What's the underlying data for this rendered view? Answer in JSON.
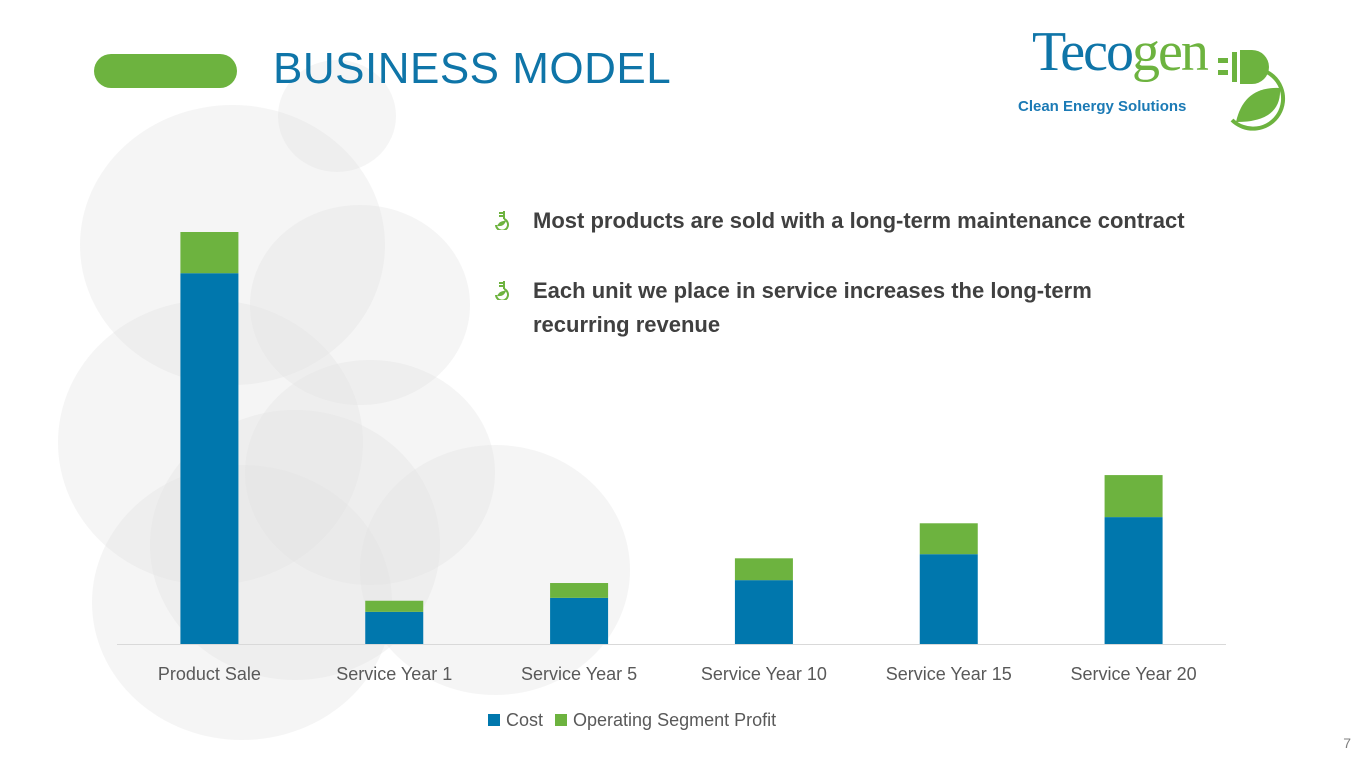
{
  "title": "BUSINESS MODEL",
  "logo": {
    "name_part1": "Teco",
    "name_part2": "gen",
    "tagline": "Clean Energy Solutions"
  },
  "bullets": [
    {
      "icon": "plug-leaf-icon",
      "text": "Most products are sold with a long-term maintenance contract"
    },
    {
      "icon": "plug-leaf-icon",
      "text": "Each unit we place in service increases the long-term recurring revenue"
    }
  ],
  "page_number": "7",
  "colors": {
    "cost": "#0077ad",
    "profit": "#6db33f",
    "title": "#0f75a8"
  },
  "chart_data": {
    "type": "bar",
    "stacked": true,
    "title": "",
    "xlabel": "",
    "ylabel": "",
    "ylim": [
      0,
      100
    ],
    "grid": false,
    "legend_placement": "bottom",
    "categories": [
      "Product Sale",
      "Service Year 1",
      "Service Year 5",
      "Service Year 10",
      "Service Year 15",
      "Service Year 20"
    ],
    "series": [
      {
        "name": "Cost",
        "values": [
          90,
          7.8,
          11.2,
          15.5,
          21.8,
          30.8
        ]
      },
      {
        "name": "Operating Segment Profit",
        "values": [
          10,
          2.7,
          3.6,
          5.3,
          7.5,
          10.2
        ]
      }
    ]
  }
}
